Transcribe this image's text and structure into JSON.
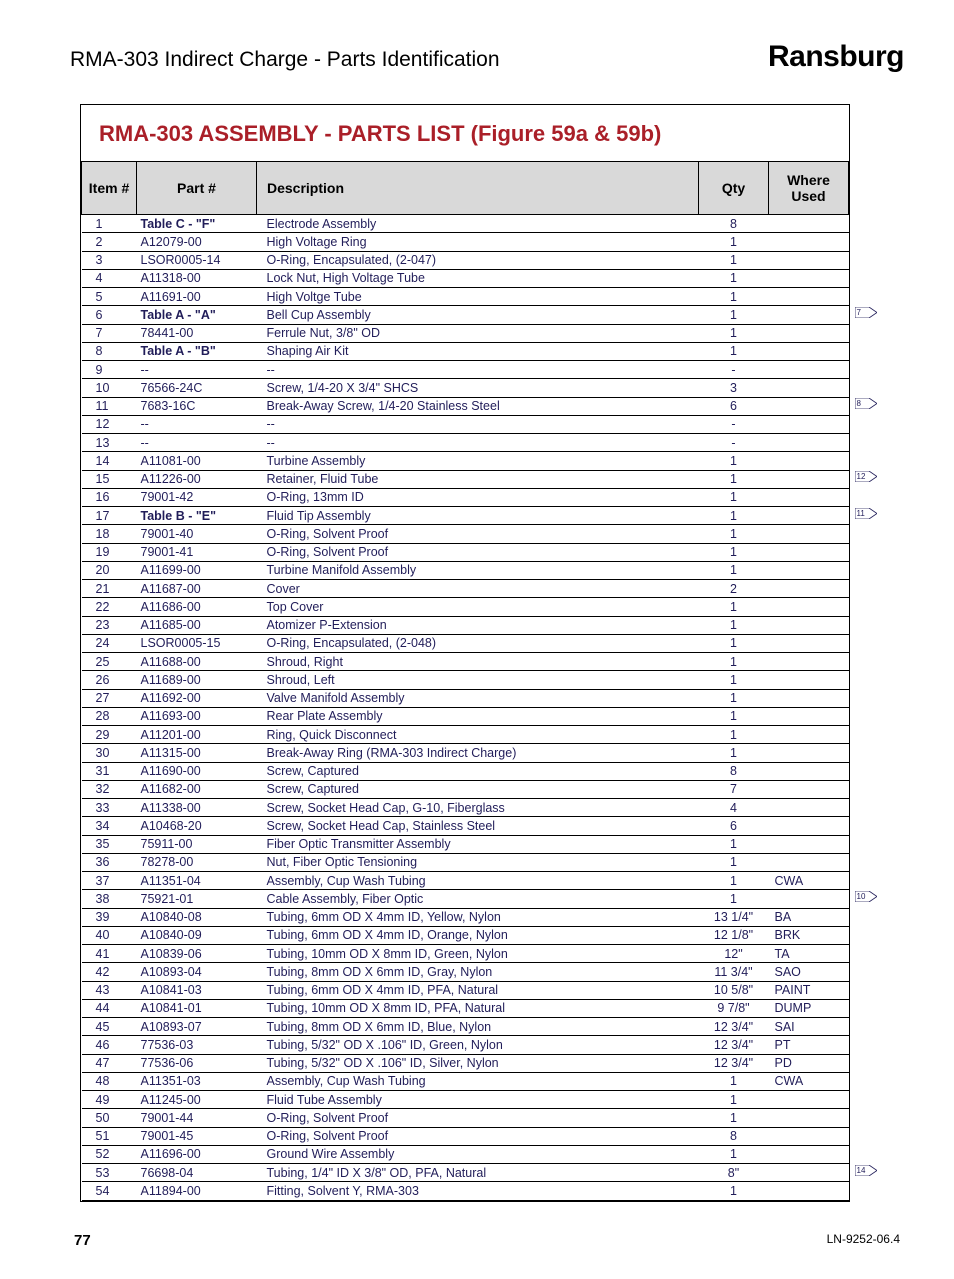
{
  "header": {
    "doc_title": "RMA-303 Indirect Charge - Parts Identification",
    "brand": "Ransburg"
  },
  "table": {
    "title": "RMA-303 ASSEMBLY - PARTS LIST (Figure 59a & 59b)",
    "columns": {
      "item": "Item #",
      "part": "Part #",
      "desc": "Description",
      "qty": "Qty",
      "where": "Where Used"
    },
    "rows": [
      {
        "item": "1",
        "part": "Table C - \"F\"",
        "part_bold": true,
        "desc": "Electrode Assembly",
        "qty": "8",
        "where": ""
      },
      {
        "item": "2",
        "part": "A12079-00",
        "desc": "High Voltage Ring",
        "qty": "1",
        "where": ""
      },
      {
        "item": "3",
        "part": "LSOR0005-14",
        "desc": "O-Ring, Encapsulated, (2-047)",
        "qty": "1",
        "where": ""
      },
      {
        "item": "4",
        "part": "A11318-00",
        "desc": "Lock Nut, High Voltage Tube",
        "qty": "1",
        "where": ""
      },
      {
        "item": "5",
        "part": "A11691-00",
        "desc": "High Voltge Tube",
        "qty": "1",
        "where": ""
      },
      {
        "item": "6",
        "part": "Table A - \"A\"",
        "part_bold": true,
        "desc": "Bell Cup Assembly",
        "qty": "1",
        "where": "",
        "flag": "7"
      },
      {
        "item": "7",
        "part": "78441-00",
        "desc": "Ferrule Nut, 3/8\" OD",
        "qty": "1",
        "where": ""
      },
      {
        "item": "8",
        "part": "Table A - \"B\"",
        "part_bold": true,
        "desc": "Shaping Air Kit",
        "qty": "1",
        "where": ""
      },
      {
        "item": "9",
        "part": "--",
        "desc": "--",
        "qty": "-",
        "where": ""
      },
      {
        "item": "10",
        "part": "76566-24C",
        "desc": "Screw, 1/4-20 X 3/4\" SHCS",
        "qty": "3",
        "where": ""
      },
      {
        "item": "11",
        "part": "7683-16C",
        "desc": "Break-Away Screw, 1/4-20 Stainless Steel",
        "qty": "6",
        "where": "",
        "flag": "8"
      },
      {
        "item": "12",
        "part": "--",
        "desc": "--",
        "qty": "-",
        "where": ""
      },
      {
        "item": "13",
        "part": "--",
        "desc": "--",
        "qty": "-",
        "where": ""
      },
      {
        "item": "14",
        "part": "A11081-00",
        "desc": "Turbine Assembly",
        "qty": "1",
        "where": ""
      },
      {
        "item": "15",
        "part": "A11226-00",
        "desc": "Retainer, Fluid Tube",
        "qty": "1",
        "where": "",
        "flag": "12"
      },
      {
        "item": "16",
        "part": "79001-42",
        "desc": "O-Ring, 13mm ID",
        "qty": "1",
        "where": ""
      },
      {
        "item": "17",
        "part": "Table B - \"E\"",
        "part_bold": true,
        "desc": "Fluid Tip Assembly",
        "qty": "1",
        "where": "",
        "flag": "11"
      },
      {
        "item": "18",
        "part": "79001-40",
        "desc": "O-Ring, Solvent Proof",
        "qty": "1",
        "where": ""
      },
      {
        "item": "19",
        "part": "79001-41",
        "desc": "O-Ring, Solvent Proof",
        "qty": "1",
        "where": ""
      },
      {
        "item": "20",
        "part": "A11699-00",
        "desc": "Turbine Manifold Assembly",
        "qty": "1",
        "where": ""
      },
      {
        "item": "21",
        "part": "A11687-00",
        "desc": "Cover",
        "qty": "2",
        "where": ""
      },
      {
        "item": "22",
        "part": "A11686-00",
        "desc": "Top Cover",
        "qty": "1",
        "where": ""
      },
      {
        "item": "23",
        "part": "A11685-00",
        "desc": "Atomizer P-Extension",
        "qty": "1",
        "where": ""
      },
      {
        "item": "24",
        "part": "LSOR0005-15",
        "desc": "O-Ring, Encapsulated, (2-048)",
        "qty": "1",
        "where": ""
      },
      {
        "item": "25",
        "part": "A11688-00",
        "desc": "Shroud, Right",
        "qty": "1",
        "where": ""
      },
      {
        "item": "26",
        "part": "A11689-00",
        "desc": "Shroud, Left",
        "qty": "1",
        "where": ""
      },
      {
        "item": "27",
        "part": "A11692-00",
        "desc": "Valve Manifold Assembly",
        "qty": "1",
        "where": ""
      },
      {
        "item": "28",
        "part": "A11693-00",
        "desc": "Rear Plate Assembly",
        "qty": "1",
        "where": ""
      },
      {
        "item": "29",
        "part": "A11201-00",
        "desc": "Ring, Quick Disconnect",
        "qty": "1",
        "where": ""
      },
      {
        "item": "30",
        "part": "A11315-00",
        "desc": "Break-Away Ring (RMA-303 Indirect Charge)",
        "qty": "1",
        "where": ""
      },
      {
        "item": "31",
        "part": "A11690-00",
        "desc": "Screw, Captured",
        "qty": "8",
        "where": ""
      },
      {
        "item": "32",
        "part": "A11682-00",
        "desc": "Screw, Captured",
        "qty": "7",
        "where": ""
      },
      {
        "item": "33",
        "part": "A11338-00",
        "desc": "Screw, Socket Head Cap, G-10, Fiberglass",
        "qty": "4",
        "where": ""
      },
      {
        "item": "34",
        "part": "A10468-20",
        "desc": "Screw, Socket Head Cap, Stainless Steel",
        "qty": "6",
        "where": ""
      },
      {
        "item": "35",
        "part": "75911-00",
        "desc": "Fiber Optic Transmitter Assembly",
        "qty": "1",
        "where": ""
      },
      {
        "item": "36",
        "part": "78278-00",
        "desc": "Nut, Fiber Optic Tensioning",
        "qty": "1",
        "where": ""
      },
      {
        "item": "37",
        "part": "A11351-04",
        "desc": "Assembly, Cup Wash Tubing",
        "qty": "1",
        "where": "CWA"
      },
      {
        "item": "38",
        "part": "75921-01",
        "desc": "Cable Assembly, Fiber Optic",
        "qty": "1",
        "where": "",
        "flag": "10"
      },
      {
        "item": "39",
        "part": "A10840-08",
        "desc": "Tubing, 6mm OD X 4mm ID, Yellow, Nylon",
        "qty": "13 1/4\"",
        "where": "BA"
      },
      {
        "item": "40",
        "part": "A10840-09",
        "desc": "Tubing, 6mm OD X 4mm ID, Orange, Nylon",
        "qty": "12 1/8\"",
        "where": "BRK"
      },
      {
        "item": "41",
        "part": "A10839-06",
        "desc": "Tubing, 10mm OD X 8mm ID, Green, Nylon",
        "qty": "12\"",
        "where": "TA"
      },
      {
        "item": "42",
        "part": "A10893-04",
        "desc": "Tubing, 8mm OD X 6mm ID, Gray, Nylon",
        "qty": "11 3/4\"",
        "where": "SAO"
      },
      {
        "item": "43",
        "part": "A10841-03",
        "desc": "Tubing, 6mm OD X 4mm ID, PFA, Natural",
        "qty": "10 5/8\"",
        "where": "PAINT"
      },
      {
        "item": "44",
        "part": "A10841-01",
        "desc": "Tubing, 10mm OD X 8mm ID, PFA, Natural",
        "qty": "9 7/8\"",
        "where": "DUMP"
      },
      {
        "item": "45",
        "part": "A10893-07",
        "desc": "Tubing, 8mm OD X 6mm ID, Blue, Nylon",
        "qty": "12 3/4\"",
        "where": "SAI"
      },
      {
        "item": "46",
        "part": "77536-03",
        "desc": "Tubing, 5/32\" OD X .106\" ID, Green, Nylon",
        "qty": "12 3/4\"",
        "where": "PT"
      },
      {
        "item": "47",
        "part": "77536-06",
        "desc": "Tubing, 5/32\" OD X .106\" ID, Silver, Nylon",
        "qty": "12 3/4\"",
        "where": "PD"
      },
      {
        "item": "48",
        "part": "A11351-03",
        "desc": "Assembly, Cup Wash Tubing",
        "qty": "1",
        "where": "CWA"
      },
      {
        "item": "49",
        "part": "A11245-00",
        "desc": "Fluid Tube Assembly",
        "qty": "1",
        "where": ""
      },
      {
        "item": "50",
        "part": "79001-44",
        "desc": "O-Ring, Solvent Proof",
        "qty": "1",
        "where": ""
      },
      {
        "item": "51",
        "part": "79001-45",
        "desc": "O-Ring, Solvent Proof",
        "qty": "8",
        "where": ""
      },
      {
        "item": "52",
        "part": "A11696-00",
        "desc": "Ground Wire Assembly",
        "qty": "1",
        "where": ""
      },
      {
        "item": "53",
        "part": "76698-04",
        "desc": "Tubing, 1/4\" ID X 3/8\" OD, PFA, Natural",
        "qty": "8\"",
        "where": "",
        "flag": "14"
      },
      {
        "item": "54",
        "part": "A11894-00",
        "desc": "Fitting, Solvent Y, RMA-303",
        "qty": "1",
        "where": ""
      }
    ]
  },
  "footer": {
    "page_num": "77",
    "doc_code": "LN-9252-06.4"
  },
  "colors": {
    "title_red": "#aa1f28",
    "table_text": "#211d59",
    "header_bg": "#d9d9d9"
  }
}
